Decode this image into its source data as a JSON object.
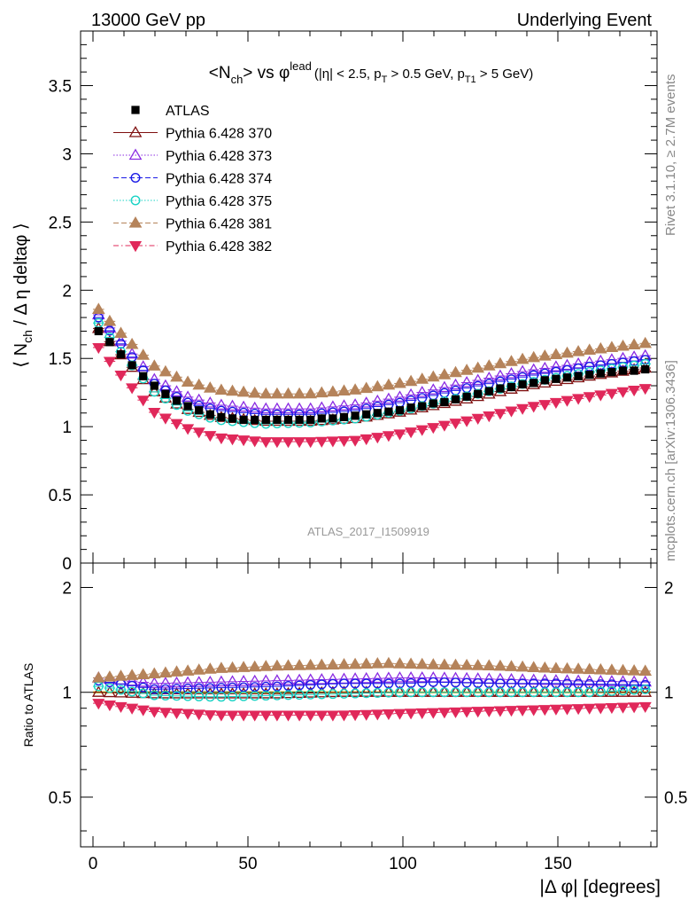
{
  "header": {
    "left": "13000 GeV pp",
    "right": "Underlying Event"
  },
  "side_labels": {
    "rivet": "Rivet 3.1.10, ≥ 2.7M events",
    "mcplots": "mcplots.cern.ch [arXiv:1306.3436]"
  },
  "colors": {
    "ATLAS": "#000000",
    "Pythia 6.428 370": "#7f1010",
    "Pythia 6.428 373": "#8a2be2",
    "Pythia 6.428 374": "#1a1ae6",
    "Pythia 6.428 375": "#19d3c5",
    "Pythia 6.428 381": "#b5835a",
    "Pythia 6.428 382": "#e0285a"
  },
  "chart_data": [
    {
      "type": "scatter",
      "title": "<N_ch> vs φ^lead (|η| < 2.5, p_T > 0.5 GeV, p_T1 > 5 GeV)",
      "title_parts": {
        "main": "<N",
        "sub1": "ch",
        "mid": "> vs φ",
        "sup": "lead",
        "cond_a": "(|η| < 2.5, p",
        "sub2": "T",
        "cond_b": " > 0.5 GeV, p",
        "sub3": "T1",
        "cond_c": " > 5 GeV)"
      },
      "ylabel": "⟨ N_ch / Δ η deltaφ ⟩",
      "ylabel_parts": {
        "a": "⟨ N",
        "sub": "ch",
        "b": " / Δ η deltaφ ⟩"
      },
      "xlim": [
        -4,
        182
      ],
      "ylim": [
        0,
        3.9
      ],
      "yticks": [
        0,
        0.5,
        1,
        1.5,
        2,
        2.5,
        3,
        3.5
      ],
      "ytick_labels": [
        "0",
        "0.5",
        "1",
        "1.5",
        "2",
        "2.5",
        "3",
        "3.5"
      ],
      "analysis_label": "ATLAS_2017_I1509919",
      "legend_placement": "top-left",
      "legend": [
        "ATLAS",
        "Pythia 6.428 370",
        "Pythia 6.428 373",
        "Pythia 6.428 374",
        "Pythia 6.428 375",
        "Pythia 6.428 381",
        "Pythia 6.428 382"
      ],
      "x_range": {
        "start": 1.8,
        "step": 3.6,
        "count": 50
      },
      "series": [
        {
          "name": "ATLAS",
          "marker": "filled-square",
          "anchors": [
            [
              1.8,
              1.7
            ],
            [
              5.4,
              1.62
            ],
            [
              9,
              1.53
            ],
            [
              12.6,
              1.45
            ],
            [
              16.2,
              1.37
            ],
            [
              19.8,
              1.3
            ],
            [
              23.4,
              1.24
            ],
            [
              27,
              1.19
            ],
            [
              30.6,
              1.15
            ],
            [
              34.2,
              1.12
            ],
            [
              37.8,
              1.09
            ],
            [
              41.4,
              1.07
            ],
            [
              45,
              1.06
            ],
            [
              48.6,
              1.05
            ],
            [
              52.2,
              1.05
            ],
            [
              55.8,
              1.05
            ],
            [
              59.4,
              1.05
            ],
            [
              63,
              1.05
            ],
            [
              66.6,
              1.05
            ],
            [
              70.2,
              1.05
            ],
            [
              73.8,
              1.06
            ],
            [
              77.4,
              1.06
            ],
            [
              81,
              1.07
            ],
            [
              84.6,
              1.08
            ],
            [
              88.2,
              1.09
            ],
            [
              91.8,
              1.1
            ],
            [
              95.4,
              1.11
            ],
            [
              99,
              1.12
            ],
            [
              102.6,
              1.14
            ],
            [
              106.2,
              1.15
            ],
            [
              109.8,
              1.17
            ],
            [
              113.4,
              1.18
            ],
            [
              117,
              1.2
            ],
            [
              120.6,
              1.22
            ],
            [
              124.2,
              1.24
            ],
            [
              127.8,
              1.26
            ],
            [
              131.4,
              1.28
            ],
            [
              135,
              1.29
            ],
            [
              138.6,
              1.31
            ],
            [
              142.2,
              1.32
            ],
            [
              145.8,
              1.34
            ],
            [
              149.4,
              1.35
            ],
            [
              153,
              1.36
            ],
            [
              156.6,
              1.37
            ],
            [
              160.2,
              1.38
            ],
            [
              163.8,
              1.39
            ],
            [
              167.4,
              1.4
            ],
            [
              171,
              1.41
            ],
            [
              174.6,
              1.41
            ],
            [
              178.2,
              1.42
            ]
          ]
        },
        {
          "name": "Pythia 6.428 370",
          "marker": "open-triangle-up",
          "line": "solid",
          "anchors": [
            [
              1.8,
              1.72
            ],
            [
              10,
              1.5
            ],
            [
              20,
              1.25
            ],
            [
              30,
              1.13
            ],
            [
              40,
              1.07
            ],
            [
              55,
              1.04
            ],
            [
              70,
              1.04
            ],
            [
              85,
              1.06
            ],
            [
              100,
              1.11
            ],
            [
              120,
              1.2
            ],
            [
              140,
              1.3
            ],
            [
              160,
              1.37
            ],
            [
              178.2,
              1.43
            ]
          ]
        },
        {
          "name": "Pythia 6.428 373",
          "marker": "open-triangle-up",
          "line": "dotted",
          "anchors": [
            [
              1.8,
              1.82
            ],
            [
              10,
              1.6
            ],
            [
              20,
              1.34
            ],
            [
              30,
              1.22
            ],
            [
              40,
              1.16
            ],
            [
              55,
              1.13
            ],
            [
              70,
              1.13
            ],
            [
              85,
              1.16
            ],
            [
              100,
              1.22
            ],
            [
              120,
              1.32
            ],
            [
              140,
              1.41
            ],
            [
              160,
              1.47
            ],
            [
              178.2,
              1.52
            ]
          ]
        },
        {
          "name": "Pythia 6.428 374",
          "marker": "open-circle",
          "line": "dashed",
          "anchors": [
            [
              1.8,
              1.8
            ],
            [
              10,
              1.58
            ],
            [
              20,
              1.31
            ],
            [
              30,
              1.18
            ],
            [
              40,
              1.12
            ],
            [
              55,
              1.09
            ],
            [
              70,
              1.09
            ],
            [
              85,
              1.12
            ],
            [
              100,
              1.18
            ],
            [
              120,
              1.28
            ],
            [
              140,
              1.37
            ],
            [
              160,
              1.44
            ],
            [
              178.2,
              1.49
            ]
          ]
        },
        {
          "name": "Pythia 6.428 375",
          "marker": "open-circle",
          "line": "dotted",
          "anchors": [
            [
              1.8,
              1.76
            ],
            [
              10,
              1.52
            ],
            [
              20,
              1.25
            ],
            [
              30,
              1.12
            ],
            [
              40,
              1.05
            ],
            [
              55,
              1.02
            ],
            [
              70,
              1.03
            ],
            [
              85,
              1.06
            ],
            [
              100,
              1.12
            ],
            [
              120,
              1.22
            ],
            [
              140,
              1.32
            ],
            [
              160,
              1.4
            ],
            [
              178.2,
              1.46
            ]
          ]
        },
        {
          "name": "Pythia 6.428 381",
          "marker": "filled-triangle-up",
          "line": "dashed",
          "anchors": [
            [
              1.8,
              1.86
            ],
            [
              10,
              1.66
            ],
            [
              20,
              1.44
            ],
            [
              30,
              1.33
            ],
            [
              40,
              1.27
            ],
            [
              55,
              1.24
            ],
            [
              70,
              1.24
            ],
            [
              85,
              1.27
            ],
            [
              100,
              1.32
            ],
            [
              120,
              1.41
            ],
            [
              140,
              1.5
            ],
            [
              160,
              1.56
            ],
            [
              178.2,
              1.61
            ]
          ]
        },
        {
          "name": "Pythia 6.428 382",
          "marker": "filled-triangle-down",
          "line": "dashdot",
          "anchors": [
            [
              1.8,
              1.58
            ],
            [
              10,
              1.35
            ],
            [
              20,
              1.1
            ],
            [
              30,
              0.99
            ],
            [
              40,
              0.92
            ],
            [
              55,
              0.89
            ],
            [
              70,
              0.89
            ],
            [
              85,
              0.9
            ],
            [
              100,
              0.95
            ],
            [
              120,
              1.04
            ],
            [
              140,
              1.14
            ],
            [
              160,
              1.22
            ],
            [
              178.2,
              1.28
            ]
          ]
        }
      ]
    },
    {
      "type": "scatter",
      "ylabel": "Ratio to ATLAS",
      "xlabel": "|Δ φ| [degrees]",
      "xlim": [
        -4,
        182
      ],
      "ylim": [
        0.36,
        2.35
      ],
      "yticks": [
        0.5,
        1,
        2
      ],
      "ytick_labels": [
        "0.5",
        "1",
        "2"
      ],
      "xticks": [
        0,
        50,
        100,
        150
      ],
      "xtick_labels": [
        "0",
        "50",
        "100",
        "150"
      ],
      "reference_line": 1,
      "series": [
        {
          "name": "Pythia 6.428 370",
          "anchors": [
            [
              1.8,
              1.0
            ],
            [
              20,
              0.99
            ],
            [
              40,
              0.99
            ],
            [
              60,
              0.99
            ],
            [
              80,
              1.0
            ],
            [
              100,
              1.0
            ],
            [
              120,
              1.0
            ],
            [
              140,
              1.0
            ],
            [
              160,
              1.0
            ],
            [
              178.2,
              1.0
            ]
          ]
        },
        {
          "name": "Pythia 6.428 373",
          "anchors": [
            [
              1.8,
              1.1
            ],
            [
              20,
              1.06
            ],
            [
              40,
              1.07
            ],
            [
              60,
              1.08
            ],
            [
              80,
              1.09
            ],
            [
              100,
              1.1
            ],
            [
              110,
              1.1
            ],
            [
              130,
              1.09
            ],
            [
              150,
              1.08
            ],
            [
              178.2,
              1.07
            ]
          ]
        },
        {
          "name": "Pythia 6.428 374",
          "anchors": [
            [
              1.8,
              1.08
            ],
            [
              20,
              1.02
            ],
            [
              40,
              1.03
            ],
            [
              60,
              1.04
            ],
            [
              80,
              1.06
            ],
            [
              100,
              1.06
            ],
            [
              110,
              1.07
            ],
            [
              130,
              1.06
            ],
            [
              150,
              1.06
            ],
            [
              178.2,
              1.05
            ]
          ]
        },
        {
          "name": "Pythia 6.428 375",
          "anchors": [
            [
              1.8,
              1.04
            ],
            [
              20,
              0.98
            ],
            [
              40,
              0.97
            ],
            [
              60,
              0.98
            ],
            [
              80,
              0.99
            ],
            [
              100,
              1.0
            ],
            [
              120,
              1.0
            ],
            [
              140,
              1.0
            ],
            [
              160,
              1.0
            ],
            [
              178.2,
              1.02
            ]
          ]
        },
        {
          "name": "Pythia 6.428 381",
          "anchors": [
            [
              1.8,
              1.1
            ],
            [
              20,
              1.13
            ],
            [
              40,
              1.17
            ],
            [
              60,
              1.19
            ],
            [
              80,
              1.2
            ],
            [
              95,
              1.21
            ],
            [
              110,
              1.2
            ],
            [
              130,
              1.19
            ],
            [
              150,
              1.17
            ],
            [
              178.2,
              1.15
            ]
          ]
        },
        {
          "name": "Pythia 6.428 382",
          "anchors": [
            [
              1.8,
              0.93
            ],
            [
              20,
              0.88
            ],
            [
              40,
              0.86
            ],
            [
              60,
              0.86
            ],
            [
              80,
              0.86
            ],
            [
              100,
              0.87
            ],
            [
              120,
              0.88
            ],
            [
              140,
              0.89
            ],
            [
              160,
              0.9
            ],
            [
              178.2,
              0.91
            ]
          ]
        }
      ]
    }
  ]
}
